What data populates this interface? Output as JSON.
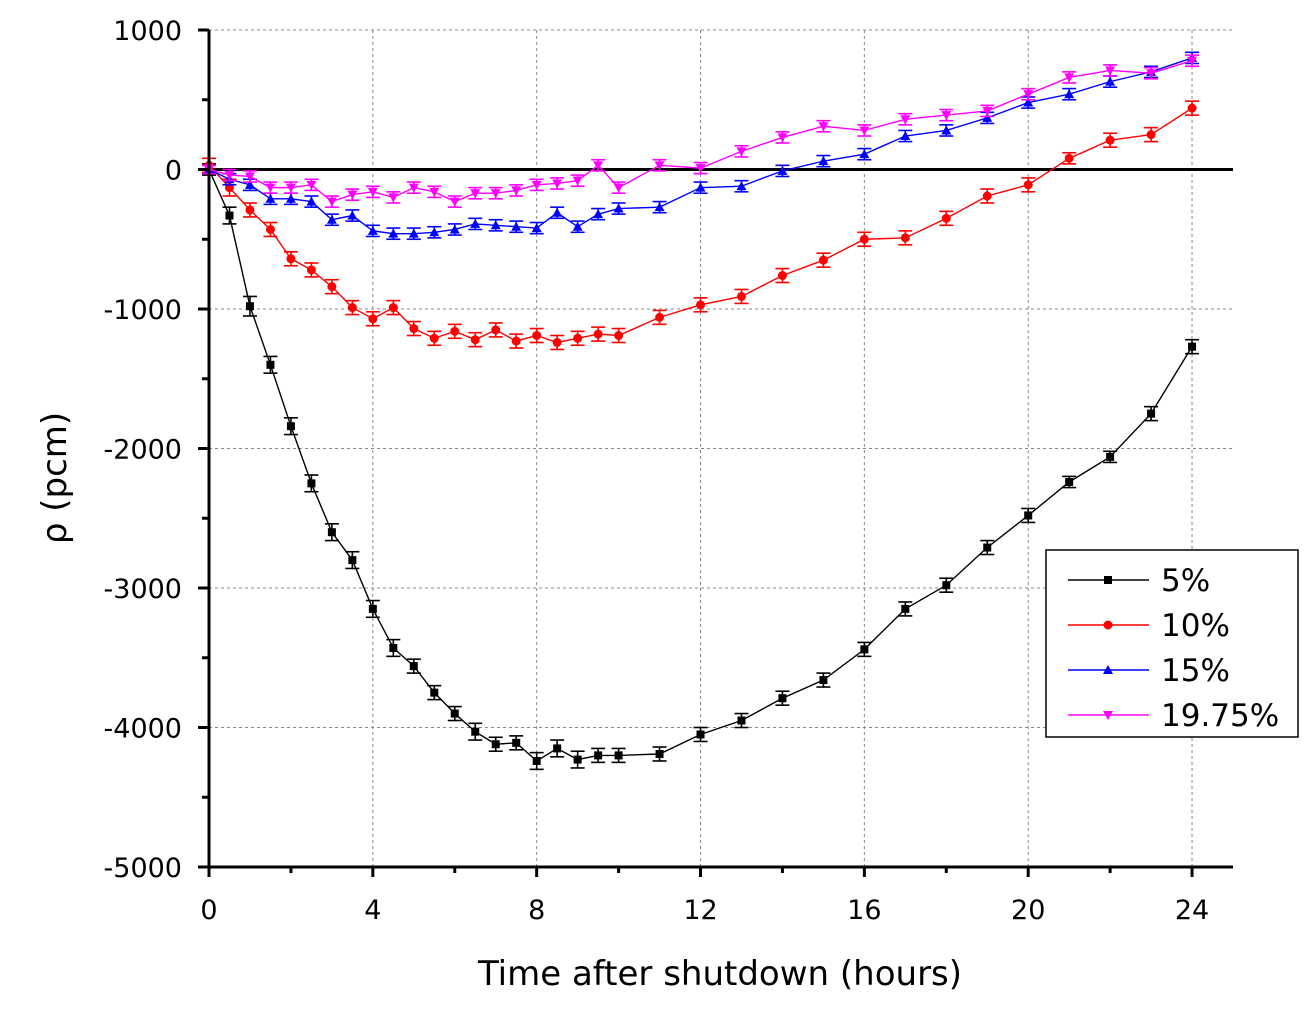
{
  "chart_data": {
    "type": "line",
    "title": "",
    "xlabel": "Time after shutdown (hours)",
    "ylabel": "ρ (pcm)",
    "xlim": [
      0,
      25
    ],
    "ylim": [
      -5000,
      1000
    ],
    "xticks": [
      0,
      4,
      8,
      12,
      16,
      20,
      24
    ],
    "yticks": [
      -5000,
      -4000,
      -3000,
      -2000,
      -1000,
      0,
      1000
    ],
    "grid": true,
    "legend_position": "right",
    "series": [
      {
        "name": "5%",
        "color": "#000000",
        "marker": "square",
        "x": [
          0,
          0.5,
          1,
          1.5,
          2,
          2.5,
          3,
          3.5,
          4,
          4.5,
          5,
          5.5,
          6,
          6.5,
          7,
          7.5,
          8,
          8.5,
          9,
          9.5,
          10,
          11,
          12,
          13,
          14,
          15,
          16,
          17,
          18,
          19,
          20,
          21,
          22,
          23,
          24
        ],
        "y": [
          0,
          -330,
          -980,
          -1400,
          -1840,
          -2250,
          -2600,
          -2800,
          -3150,
          -3430,
          -3560,
          -3750,
          -3900,
          -4030,
          -4120,
          -4110,
          -4240,
          -4150,
          -4230,
          -4200,
          -4200,
          -4190,
          -4050,
          -3950,
          -3790,
          -3660,
          -3440,
          -3150,
          -2980,
          -2710,
          -2480,
          -2240,
          -2060,
          -1750,
          -1270
        ],
        "err": [
          40,
          60,
          70,
          60,
          60,
          60,
          60,
          60,
          60,
          60,
          50,
          50,
          50,
          60,
          50,
          50,
          60,
          60,
          60,
          50,
          50,
          50,
          50,
          50,
          50,
          50,
          50,
          50,
          50,
          50,
          50,
          40,
          40,
          50,
          50
        ]
      },
      {
        "name": "10%",
        "color": "#ff0000",
        "marker": "circle",
        "x": [
          0,
          0.5,
          1,
          1.5,
          2,
          2.5,
          3,
          3.5,
          4,
          4.5,
          5,
          5.5,
          6,
          6.5,
          7,
          7.5,
          8,
          8.5,
          9,
          9.5,
          10,
          11,
          12,
          13,
          14,
          15,
          16,
          17,
          18,
          19,
          20,
          21,
          22,
          23,
          24
        ],
        "y": [
          30,
          -130,
          -290,
          -430,
          -640,
          -720,
          -840,
          -990,
          -1070,
          -990,
          -1140,
          -1210,
          -1160,
          -1220,
          -1150,
          -1230,
          -1190,
          -1240,
          -1210,
          -1180,
          -1190,
          -1060,
          -970,
          -910,
          -760,
          -650,
          -500,
          -490,
          -350,
          -190,
          -110,
          80,
          210,
          250,
          440
        ],
        "err": [
          50,
          60,
          50,
          50,
          50,
          50,
          50,
          50,
          50,
          50,
          50,
          50,
          50,
          50,
          50,
          50,
          50,
          50,
          50,
          50,
          50,
          50,
          50,
          50,
          50,
          50,
          50,
          50,
          50,
          50,
          50,
          40,
          50,
          50,
          50
        ]
      },
      {
        "name": "15%",
        "color": "#0000ff",
        "marker": "triangle-up",
        "x": [
          0,
          0.5,
          1,
          1.5,
          2,
          2.5,
          3,
          3.5,
          4,
          4.5,
          5,
          5.5,
          6,
          6.5,
          7,
          7.5,
          8,
          8.5,
          9,
          9.5,
          10,
          11,
          12,
          13,
          14,
          15,
          16,
          17,
          18,
          19,
          20,
          21,
          22,
          23,
          24
        ],
        "y": [
          0,
          -70,
          -110,
          -210,
          -210,
          -230,
          -360,
          -330,
          -440,
          -460,
          -460,
          -450,
          -430,
          -390,
          -400,
          -410,
          -420,
          -310,
          -410,
          -320,
          -280,
          -270,
          -130,
          -120,
          -10,
          60,
          110,
          240,
          280,
          370,
          480,
          540,
          630,
          700,
          800
        ],
        "err": [
          30,
          40,
          40,
          40,
          40,
          40,
          40,
          40,
          40,
          40,
          40,
          40,
          40,
          40,
          40,
          40,
          40,
          40,
          40,
          40,
          40,
          40,
          40,
          40,
          40,
          40,
          40,
          40,
          40,
          40,
          40,
          40,
          40,
          40,
          40
        ]
      },
      {
        "name": "19.75%",
        "color": "#ff00ff",
        "marker": "triangle-down",
        "x": [
          0,
          0.5,
          1,
          1.5,
          2,
          2.5,
          3,
          3.5,
          4,
          4.5,
          5,
          5.5,
          6,
          6.5,
          7,
          7.5,
          8,
          8.5,
          9,
          9.5,
          10,
          11,
          12,
          13,
          14,
          15,
          16,
          17,
          18,
          19,
          20,
          21,
          22,
          23,
          24
        ],
        "y": [
          0,
          -40,
          -50,
          -130,
          -130,
          -110,
          -230,
          -180,
          -160,
          -200,
          -130,
          -160,
          -230,
          -170,
          -170,
          -150,
          -110,
          -100,
          -80,
          30,
          -130,
          30,
          10,
          130,
          230,
          310,
          280,
          360,
          390,
          420,
          540,
          660,
          710,
          690,
          780
        ],
        "err": [
          30,
          40,
          40,
          40,
          40,
          40,
          40,
          40,
          40,
          40,
          40,
          40,
          40,
          40,
          40,
          40,
          40,
          40,
          40,
          40,
          40,
          40,
          40,
          40,
          40,
          40,
          40,
          40,
          40,
          40,
          40,
          40,
          40,
          40,
          40
        ]
      }
    ]
  }
}
